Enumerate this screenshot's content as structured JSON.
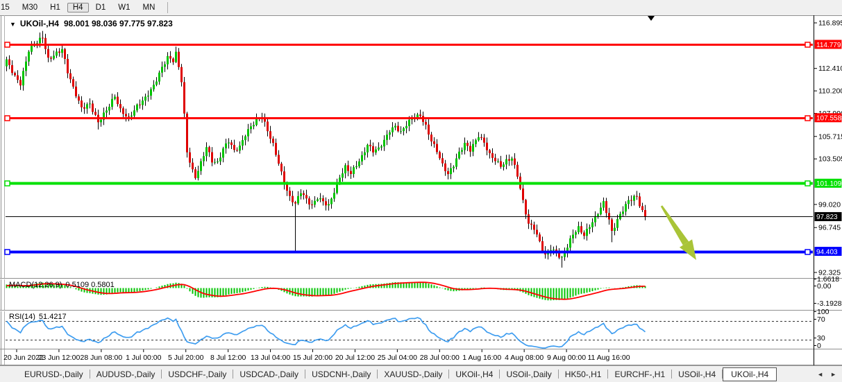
{
  "toolbar": {
    "timeframes": [
      "15",
      "M30",
      "H1",
      "H4",
      "D1",
      "W1",
      "MN"
    ],
    "active": "H4"
  },
  "title": {
    "dropdown_icon": "▼",
    "symbol": "UKOil-,H4",
    "ohlc": "98.001 98.036 97.775 97.823"
  },
  "chart_data": {
    "type": "candlestick",
    "symbol": "UKOil-",
    "timeframe": "H4",
    "last_ohlc": {
      "open": 98.001,
      "high": 98.036,
      "low": 97.775,
      "close": 97.823
    },
    "y_axis": {
      "visible_labels": [
        "116.895",
        "112.410",
        "110.200",
        "107.990",
        "105.715",
        "103.505",
        "99.020",
        "96.745",
        "92.325"
      ],
      "price_top": 116.895,
      "price_bottom": 92.325
    },
    "x_axis_labels": [
      "20 Jun 2022",
      "23 Jun 12:00",
      "28 Jun 08:00",
      "1 Jul 00:00",
      "5 Jul 20:00",
      "8 Jul 12:00",
      "13 Jul 04:00",
      "15 Jul 20:00",
      "20 Jul 12:00",
      "25 Jul 04:00",
      "28 Jul 00:00",
      "1 Aug 16:00",
      "4 Aug 08:00",
      "9 Aug 00:00",
      "11 Aug 16:00"
    ],
    "horizontal_lines": [
      {
        "label": "114.779",
        "price": 114.779,
        "color": "#FF0000",
        "badge_fg": "#FFFFFF",
        "width": 3
      },
      {
        "label": "107.558",
        "price": 107.558,
        "color": "#FF0000",
        "badge_fg": "#FFFFFF",
        "width": 3
      },
      {
        "label": "101.109",
        "price": 101.109,
        "color": "#00E000",
        "badge_fg": "#FFFFFF",
        "width": 4
      },
      {
        "label": "94.403",
        "price": 94.403,
        "color": "#0000FF",
        "badge_fg": "#FFFFFF",
        "width": 4
      }
    ],
    "current_price": {
      "label": "97.823",
      "price": 97.823,
      "color": "#000000",
      "badge_bg": "#000000",
      "badge_fg": "#FFFFFF"
    },
    "candles": {
      "bull_color": "#00C400",
      "bear_color": "#DF0000",
      "wick_color": "#000000",
      "pre_window_waypoints": [
        [
          -12,
          110.0
        ],
        [
          -6,
          111.5
        ],
        [
          -1,
          112.8
        ]
      ],
      "waypoints": [
        [
          0,
          113.2
        ],
        [
          3,
          111.6
        ],
        [
          5,
          110.9
        ],
        [
          8,
          114.2
        ],
        [
          11,
          115.0
        ],
        [
          13,
          115.5
        ],
        [
          15,
          113.3
        ],
        [
          18,
          113.9
        ],
        [
          20,
          114.3
        ],
        [
          22,
          112.1
        ],
        [
          24,
          110.5
        ],
        [
          27,
          108.5
        ],
        [
          30,
          108.9
        ],
        [
          33,
          107.1
        ],
        [
          36,
          108.3
        ],
        [
          39,
          109.7
        ],
        [
          41,
          108.3
        ],
        [
          44,
          107.5
        ],
        [
          47,
          108.7
        ],
        [
          50,
          109.5
        ],
        [
          53,
          110.7
        ],
        [
          56,
          112.5
        ],
        [
          58,
          113.5
        ],
        [
          60,
          113.2
        ],
        [
          61,
          113.9
        ],
        [
          63,
          111.2
        ],
        [
          64,
          107.8
        ],
        [
          65,
          104.2
        ],
        [
          67,
          102.3
        ],
        [
          68,
          101.7
        ],
        [
          70,
          103.1
        ],
        [
          72,
          104.7
        ],
        [
          74,
          103.3
        ],
        [
          76,
          103.1
        ],
        [
          78,
          104.5
        ],
        [
          80,
          105.3
        ],
        [
          82,
          104.3
        ],
        [
          84,
          104.7
        ],
        [
          86,
          105.9
        ],
        [
          88,
          106.7
        ],
        [
          90,
          107.3
        ],
        [
          92,
          107.7
        ],
        [
          94,
          106.3
        ],
        [
          96,
          104.9
        ],
        [
          98,
          103.1
        ],
        [
          100,
          101.1
        ],
        [
          102,
          99.7
        ],
        [
          104,
          99.1
        ],
        [
          106,
          100.3
        ],
        [
          108,
          99.5
        ],
        [
          110,
          98.9
        ],
        [
          112,
          99.7
        ],
        [
          114,
          99.3
        ],
        [
          116,
          98.9
        ],
        [
          118,
          100.3
        ],
        [
          120,
          101.7
        ],
        [
          122,
          102.7
        ],
        [
          124,
          102.1
        ],
        [
          126,
          102.9
        ],
        [
          128,
          103.7
        ],
        [
          130,
          104.9
        ],
        [
          132,
          104.3
        ],
        [
          134,
          104.5
        ],
        [
          136,
          105.3
        ],
        [
          138,
          106.3
        ],
        [
          140,
          106.7
        ],
        [
          142,
          106.1
        ],
        [
          144,
          106.9
        ],
        [
          146,
          107.5
        ],
        [
          149,
          107.8
        ],
        [
          151,
          106.7
        ],
        [
          153,
          105.3
        ],
        [
          155,
          104.3
        ],
        [
          157,
          102.9
        ],
        [
          159,
          102.0
        ],
        [
          161,
          102.9
        ],
        [
          163,
          104.1
        ],
        [
          165,
          105.0
        ],
        [
          167,
          104.4
        ],
        [
          169,
          105.3
        ],
        [
          170,
          105.8
        ],
        [
          172,
          105.1
        ],
        [
          174,
          103.9
        ],
        [
          176,
          103.4
        ],
        [
          178,
          102.8
        ],
        [
          180,
          103.3
        ],
        [
          182,
          103.6
        ],
        [
          184,
          101.9
        ],
        [
          186,
          99.3
        ],
        [
          188,
          97.1
        ],
        [
          190,
          96.7
        ],
        [
          192,
          95.3
        ],
        [
          194,
          94.0
        ],
        [
          196,
          94.7
        ],
        [
          198,
          94.2
        ],
        [
          200,
          93.7
        ],
        [
          202,
          94.9
        ],
        [
          204,
          96.1
        ],
        [
          206,
          96.7
        ],
        [
          208,
          96.0
        ],
        [
          210,
          96.9
        ],
        [
          212,
          97.7
        ],
        [
          214,
          98.7
        ],
        [
          215,
          99.2
        ],
        [
          217,
          97.5
        ],
        [
          218,
          96.3
        ],
        [
          220,
          97.5
        ],
        [
          222,
          98.5
        ],
        [
          224,
          99.4
        ],
        [
          226,
          99.7
        ],
        [
          227,
          99.8
        ],
        [
          228,
          99.0
        ],
        [
          229,
          98.3
        ],
        [
          230,
          97.823
        ]
      ],
      "spikes": [
        {
          "i": 13,
          "high": 116.1
        },
        {
          "i": 33,
          "low": 106.4
        },
        {
          "i": 104,
          "low": 94.45
        },
        {
          "i": 200,
          "low": 92.8
        },
        {
          "i": 218,
          "low": 95.3
        }
      ]
    },
    "indicators": {
      "macd": {
        "name": "MACD(12,26,9)",
        "current": "0.5109 0.5801",
        "scale_max": "1.6618",
        "scale_zero": "0.00",
        "scale_min": "-3.1928",
        "hist_color": "#00C400",
        "signal_color": "#FF0000"
      },
      "rsi": {
        "name": "RSI(14)",
        "current": "51.4217",
        "line_color": "#3E9DF0",
        "levels": {
          "top": "100",
          "upper": "70",
          "lower": "30",
          "bottom": "0"
        }
      }
    },
    "annotations": {
      "arrow_color": "#A9C437",
      "shift_marker_color": "#000000"
    }
  },
  "tabs": {
    "items": [
      "EURUSD-,Daily",
      "AUDUSD-,Daily",
      "USDCHF-,Daily",
      "USDCAD-,Daily",
      "USDCNH-,Daily",
      "XAUUSD-,Daily",
      "UKOil-,H4",
      "USOil-,Daily",
      "HK50-,H1",
      "EURCHF-,H1",
      "USOil-,H4",
      "UKOil-,H4"
    ],
    "active_index": 11,
    "scroll_left_icon": "◄",
    "scroll_right_icon": "►"
  }
}
